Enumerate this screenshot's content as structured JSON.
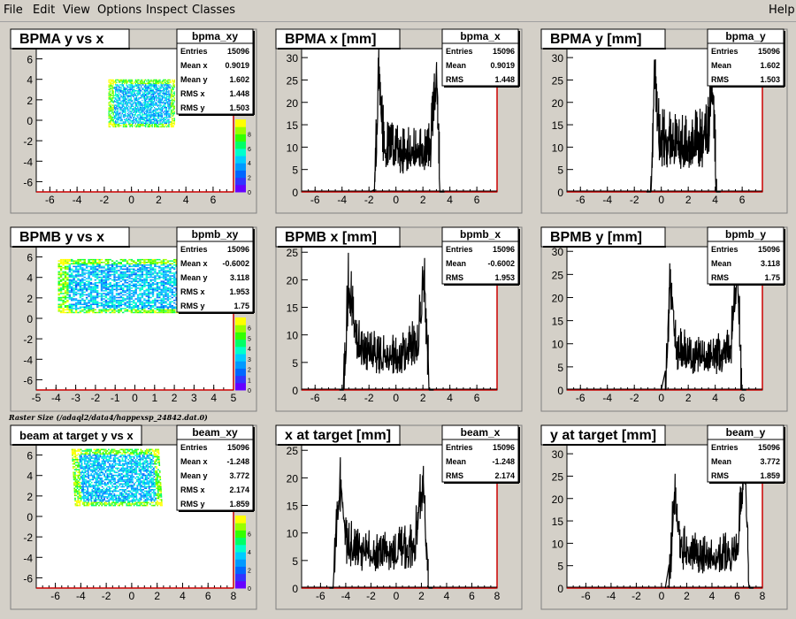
{
  "menu": {
    "file": "File",
    "edit": "Edit",
    "view": "View",
    "options": "Options",
    "inspect": "Inspect",
    "classes": "Classes",
    "help": "Help"
  },
  "raster_title": "Raster Size (/adaql2/data4/happexsp_24842.dat.0)",
  "colors": {
    "frame_fill": "#ffffff",
    "pad_bg": "#d4d0c8",
    "axis_red": "#cc0000",
    "hist_line": "#000000",
    "palette": [
      "#6600ff",
      "#3333ff",
      "#0066ff",
      "#0099ff",
      "#00ccff",
      "#00ffcc",
      "#00ff66",
      "#33ff00",
      "#99ff00",
      "#ffff00"
    ]
  },
  "stat_rows_labels": {
    "entries": "Entries",
    "mean_x": "Mean x",
    "mean_y": "Mean y",
    "rms_x": "RMS x",
    "rms_y": "RMS y",
    "mean": "Mean",
    "rms": "RMS"
  },
  "chart_data": [
    {
      "id": "bpma_xy",
      "type": "heatmap",
      "title": "BPMA y vs x",
      "xlim": [
        -7,
        7.5
      ],
      "ylim": [
        -7,
        7
      ],
      "xticks": [
        -6,
        -4,
        -2,
        0,
        2,
        4,
        6
      ],
      "yticks": [
        -6,
        -4,
        -2,
        0,
        2,
        4,
        6
      ],
      "region": {
        "x0": -1.7,
        "x1": 3.2,
        "y0": -0.7,
        "y1": 4.0,
        "skew": 0.0
      },
      "zmax": 10,
      "zticks": [
        0,
        2,
        4,
        6,
        8
      ],
      "stats": {
        "name": "bpma_xy",
        "entries": "15096",
        "mean_x": "0.9019",
        "mean_y": "1.602",
        "rms_x": "1.448",
        "rms_y": "1.503"
      }
    },
    {
      "id": "bpma_x",
      "type": "area",
      "title": "BPMA x [mm]",
      "xlim": [
        -7,
        7.5
      ],
      "ylim": [
        0,
        32
      ],
      "xticks": [
        -6,
        -4,
        -2,
        0,
        2,
        4,
        6
      ],
      "yticks": [
        0,
        5,
        10,
        15,
        20,
        25,
        30
      ],
      "shape": {
        "lo": -1.6,
        "hi": 3.3,
        "base": 10,
        "peak_lo": 28,
        "peak_hi": 30
      },
      "stats": {
        "name": "bpma_x",
        "entries": "15096",
        "mean": "0.9019",
        "rms": "1.448"
      }
    },
    {
      "id": "bpma_y",
      "type": "area",
      "title": "BPMA y [mm]",
      "xlim": [
        -7,
        7.5
      ],
      "ylim": [
        0,
        32
      ],
      "xticks": [
        -6,
        -4,
        -2,
        0,
        2,
        4,
        6
      ],
      "yticks": [
        0,
        5,
        10,
        15,
        20,
        25,
        30
      ],
      "shape": {
        "lo": -0.8,
        "hi": 4.1,
        "base": 12,
        "peak_lo": 30,
        "peak_hi": 28
      },
      "stats": {
        "name": "bpma_y",
        "entries": "15096",
        "mean": "1.602",
        "rms": "1.503"
      }
    },
    {
      "id": "bpmb_xy",
      "type": "heatmap",
      "title": "BPMB y vs x",
      "xlim": [
        -5,
        5
      ],
      "ylim": [
        -7,
        7
      ],
      "xticks": [
        -5,
        -4,
        -3,
        -2,
        -1,
        0,
        1,
        2,
        3,
        4,
        5
      ],
      "yticks": [
        -6,
        -4,
        -2,
        0,
        2,
        4,
        6
      ],
      "region": {
        "x0": -3.9,
        "x1": 2.6,
        "y0": 0.5,
        "y1": 5.8,
        "skew": 0.0
      },
      "zmax": 7,
      "zticks": [
        0,
        1,
        2,
        3,
        4,
        5,
        6
      ],
      "stats": {
        "name": "bpmb_xy",
        "entries": "15096",
        "mean_x": "-0.6002",
        "mean_y": "3.118",
        "rms_x": "1.953",
        "rms_y": "1.75"
      }
    },
    {
      "id": "bpmb_x",
      "type": "area",
      "title": "BPMB x [mm]",
      "xlim": [
        -7,
        7.5
      ],
      "ylim": [
        0,
        26
      ],
      "xticks": [
        -6,
        -4,
        -2,
        0,
        2,
        4,
        6
      ],
      "yticks": [
        0,
        5,
        10,
        15,
        20,
        25
      ],
      "shape": {
        "lo": -3.9,
        "hi": 2.5,
        "base": 7,
        "peak_lo": 22,
        "peak_hi": 22
      },
      "stats": {
        "name": "bpmb_x",
        "entries": "15096",
        "mean": "-0.6002",
        "rms": "1.953"
      }
    },
    {
      "id": "bpmb_y",
      "type": "area",
      "title": "BPMB y [mm]",
      "xlim": [
        -7,
        7.5
      ],
      "ylim": [
        0,
        31
      ],
      "xticks": [
        -6,
        -4,
        -2,
        0,
        2,
        4,
        6
      ],
      "yticks": [
        0,
        5,
        10,
        15,
        20,
        25,
        30
      ],
      "shape": {
        "lo": 0.3,
        "hi": 6.0,
        "base": 8,
        "peak_lo": 26,
        "peak_hi": 29
      },
      "stats": {
        "name": "bpmb_y",
        "entries": "15096",
        "mean": "3.118",
        "rms": "1.75"
      }
    },
    {
      "id": "beam_xy",
      "type": "heatmap",
      "title": "beam at target y vs x",
      "xlim": [
        -7.5,
        8
      ],
      "ylim": [
        -7,
        7
      ],
      "xticks": [
        -6,
        -4,
        -2,
        0,
        2,
        4,
        6,
        8
      ],
      "yticks": [
        -6,
        -4,
        -2,
        0,
        2,
        4,
        6
      ],
      "region": {
        "x0": -4.6,
        "x1": 2.3,
        "y0": 1.0,
        "y1": 6.6,
        "skew": 0.4
      },
      "zmax": 8,
      "zticks": [
        0,
        2,
        4,
        6
      ],
      "stats": {
        "name": "beam_xy",
        "entries": "15096",
        "mean_x": "-1.248",
        "mean_y": "3.772",
        "rms_x": "2.174",
        "rms_y": "1.859"
      }
    },
    {
      "id": "beam_x",
      "type": "area",
      "title": "x at target [mm]",
      "xlim": [
        -7.5,
        8
      ],
      "ylim": [
        0,
        26
      ],
      "xticks": [
        -6,
        -4,
        -2,
        0,
        2,
        4,
        6,
        8
      ],
      "yticks": [
        0,
        5,
        10,
        15,
        20,
        25
      ],
      "shape": {
        "lo": -5.0,
        "hi": 2.6,
        "base": 7,
        "peak_lo": 22,
        "peak_hi": 22
      },
      "stats": {
        "name": "beam_x",
        "entries": "15096",
        "mean": "-1.248",
        "rms": "2.174"
      }
    },
    {
      "id": "beam_y",
      "type": "area",
      "title": "y at target [mm]",
      "xlim": [
        -7.5,
        8
      ],
      "ylim": [
        0,
        32
      ],
      "xticks": [
        -6,
        -4,
        -2,
        0,
        2,
        4,
        6,
        8
      ],
      "yticks": [
        0,
        5,
        10,
        15,
        20,
        25,
        30
      ],
      "shape": {
        "lo": 0.6,
        "hi": 7.0,
        "base": 8,
        "peak_lo": 24,
        "peak_hi": 31
      },
      "stats": {
        "name": "beam_y",
        "entries": "15096",
        "mean": "3.772",
        "rms": "1.859"
      }
    }
  ]
}
